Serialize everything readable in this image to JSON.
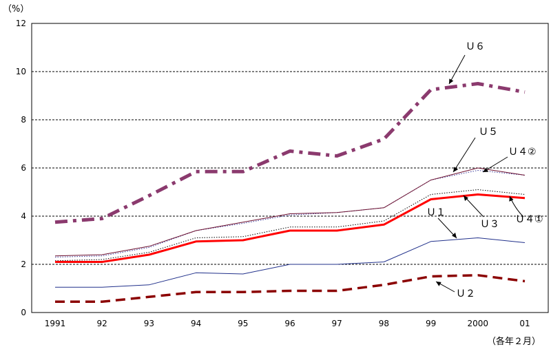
{
  "chart_data": {
    "type": "line",
    "y_unit_label": "（%）",
    "x_note": "（各年２月）",
    "categories": [
      "1991",
      "92",
      "93",
      "94",
      "95",
      "96",
      "97",
      "98",
      "99",
      "2000",
      "01"
    ],
    "yticks": [
      "0",
      "2",
      "4",
      "6",
      "8",
      "10",
      "12"
    ],
    "ylim": [
      0,
      12
    ],
    "grid": "horizontal dashed",
    "series": [
      {
        "name": "U6",
        "label": "Ｕ６",
        "color": "#8B3A6E",
        "style": "dashdot",
        "values": [
          3.75,
          3.9,
          4.85,
          5.85,
          5.85,
          6.7,
          6.5,
          7.2,
          9.25,
          9.5,
          9.15
        ]
      },
      {
        "name": "U5",
        "label": "Ｕ５",
        "color": "#6B0E2E",
        "style": "solid-thin",
        "values": [
          2.35,
          2.4,
          2.75,
          3.4,
          3.75,
          4.1,
          4.15,
          4.35,
          5.5,
          6.0,
          5.7
        ]
      },
      {
        "name": "U4②",
        "label": "Ｕ４②",
        "color": "#3A3A9A",
        "style": "dotted",
        "values": [
          2.3,
          2.35,
          2.7,
          3.4,
          3.7,
          4.05,
          4.15,
          4.35,
          5.5,
          5.9,
          5.7
        ]
      },
      {
        "name": "U4①",
        "label": "Ｕ４①",
        "color": "#000000",
        "style": "dotted",
        "values": [
          2.15,
          2.2,
          2.5,
          3.1,
          3.15,
          3.55,
          3.55,
          3.8,
          4.9,
          5.1,
          4.9
        ]
      },
      {
        "name": "U3",
        "label": "Ｕ３",
        "color": "#FF0000",
        "style": "solid-thick",
        "values": [
          2.1,
          2.1,
          2.4,
          2.95,
          3.0,
          3.4,
          3.4,
          3.65,
          4.7,
          4.9,
          4.75
        ]
      },
      {
        "name": "U1",
        "label": "Ｕ１",
        "color": "#1F2F8A",
        "style": "solid-thin",
        "values": [
          1.05,
          1.05,
          1.15,
          1.65,
          1.6,
          2.0,
          2.0,
          2.1,
          2.95,
          3.1,
          2.9
        ]
      },
      {
        "name": "U2",
        "label": "Ｕ２",
        "color": "#8B0000",
        "style": "dashed",
        "values": [
          0.45,
          0.45,
          0.65,
          0.85,
          0.85,
          0.9,
          0.9,
          1.15,
          1.5,
          1.55,
          1.3
        ]
      }
    ]
  }
}
